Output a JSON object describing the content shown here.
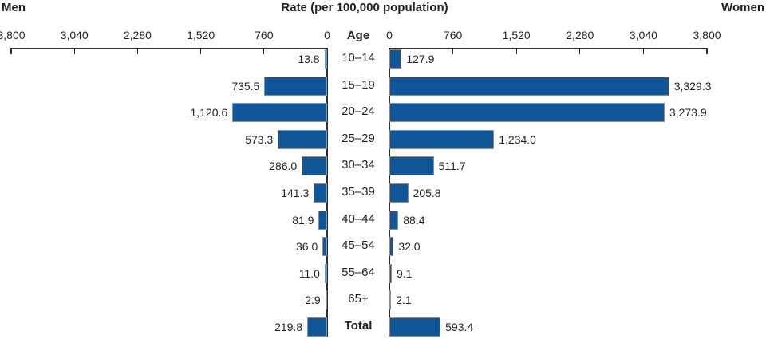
{
  "header": {
    "left": "Men",
    "title": "Rate (per 100,000 population)",
    "right": "Women",
    "age_label": "Age"
  },
  "chart_data": {
    "type": "bar",
    "orientation": "bilateral-horizontal",
    "title": "Rate (per 100,000 population)",
    "ylabel": "Age",
    "categories": [
      "10–14",
      "15–19",
      "20–24",
      "25–29",
      "30–34",
      "35–39",
      "40–44",
      "45–54",
      "55–64",
      "65+",
      "Total"
    ],
    "series": [
      {
        "name": "Men",
        "side": "left",
        "values": [
          13.8,
          735.5,
          1120.6,
          573.3,
          286.0,
          141.3,
          81.9,
          36.0,
          11.0,
          2.9,
          219.8
        ],
        "labels": [
          "13.8",
          "735.5",
          "1,120.6",
          "573.3",
          "286.0",
          "141.3",
          "81.9",
          "36.0",
          "11.0",
          "2.9",
          "219.8"
        ]
      },
      {
        "name": "Women",
        "side": "right",
        "values": [
          127.9,
          3329.3,
          3273.9,
          1234.0,
          511.7,
          205.8,
          88.4,
          32.0,
          9.1,
          2.1,
          593.4
        ],
        "labels": [
          "127.9",
          "3,329.3",
          "3,273.9",
          "1,234.0",
          "511.7",
          "205.8",
          "88.4",
          "32.0",
          "9.1",
          "2.1",
          "593.4"
        ]
      }
    ],
    "axis": {
      "max": 3800,
      "ticks": [
        0,
        760,
        1520,
        2280,
        3040,
        3800
      ],
      "tick_labels": [
        "0",
        "760",
        "1,520",
        "2,280",
        "3,040",
        "3,800"
      ]
    },
    "legend_position": "none",
    "grid": false,
    "colors": {
      "bar": "#10579a",
      "bar_border": "#8e8e8e",
      "axis": "#2e2e2e",
      "text": "#231f20"
    }
  }
}
